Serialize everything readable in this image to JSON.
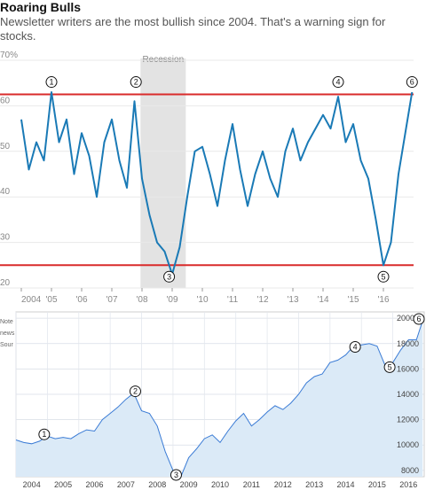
{
  "header": {
    "title": "Roaring Bulls",
    "subtitle": "Newsletter writers are the most bullish since 2004. That's a warning sign for stocks."
  },
  "notes": [
    "Note",
    "news",
    "Sour"
  ],
  "colors": {
    "bulls_line": "#1a7ab6",
    "threshold_line": "#d92b2b",
    "recession_band": "#e3e3e3",
    "dow_line": "#3a7bd5",
    "dow_fill": "#dbeaf7"
  },
  "chart_data": [
    {
      "type": "line",
      "title": "",
      "ylim": [
        20,
        70
      ],
      "y_ticks": [
        "70%",
        "60",
        "50",
        "40",
        "30",
        "20"
      ],
      "x_labels": [
        "2004",
        "'05",
        "'06",
        "'07",
        "'08",
        "'09",
        "'10",
        "'11",
        "'12",
        "'13",
        "'14",
        "'15",
        "'16"
      ],
      "shaded_region": {
        "label": "Recession",
        "from": 2007.95,
        "to": 2009.45
      },
      "reference_lines": [
        62.5,
        25
      ],
      "markers": [
        {
          "label": "1",
          "x": 2005.0,
          "y": 62.8
        },
        {
          "label": "2",
          "x": 2007.8,
          "y": 62.0
        },
        {
          "label": "3",
          "x": 2008.9,
          "y": 23.0
        },
        {
          "label": "4",
          "x": 2014.5,
          "y": 62.5
        },
        {
          "label": "5",
          "x": 2016.0,
          "y": 25.5
        },
        {
          "label": "6",
          "x": 2016.95,
          "y": 63.0
        }
      ],
      "x": [
        2004.0,
        2004.25,
        2004.5,
        2004.75,
        2005.0,
        2005.25,
        2005.5,
        2005.75,
        2006.0,
        2006.25,
        2006.5,
        2006.75,
        2007.0,
        2007.25,
        2007.5,
        2007.75,
        2008.0,
        2008.25,
        2008.5,
        2008.75,
        2009.0,
        2009.25,
        2009.5,
        2009.75,
        2010.0,
        2010.25,
        2010.5,
        2010.75,
        2011.0,
        2011.25,
        2011.5,
        2011.75,
        2012.0,
        2012.25,
        2012.5,
        2012.75,
        2013.0,
        2013.25,
        2013.5,
        2013.75,
        2014.0,
        2014.25,
        2014.5,
        2014.75,
        2015.0,
        2015.25,
        2015.5,
        2015.75,
        2016.0,
        2016.25,
        2016.5,
        2016.75,
        2016.95
      ],
      "series": [
        {
          "values": [
            57,
            46,
            52,
            48,
            63,
            52,
            57,
            45,
            54,
            49,
            40,
            52,
            57,
            48,
            42,
            61,
            44,
            36,
            30,
            28,
            23,
            29,
            40,
            50,
            51,
            45,
            38,
            48,
            56,
            46,
            38,
            45,
            50,
            44,
            40,
            50,
            55,
            48,
            52,
            55,
            58,
            55,
            62,
            52,
            56,
            48,
            44,
            35,
            25,
            30,
            45,
            55,
            63
          ]
        }
      ]
    },
    {
      "type": "area",
      "title": "",
      "ylim": [
        7500,
        20500
      ],
      "y_ticks": [
        "20000",
        "18000",
        "16000",
        "14000",
        "12000",
        "10000",
        "8000"
      ],
      "x_labels": [
        "2004",
        "2005",
        "2006",
        "2007",
        "2008",
        "2009",
        "2010",
        "2011",
        "2012",
        "2013",
        "2014",
        "2015",
        "2016"
      ],
      "markers": [
        {
          "label": "1",
          "x": 2004.9,
          "y": 10700
        },
        {
          "label": "2",
          "x": 2007.8,
          "y": 14100
        },
        {
          "label": "3",
          "x": 2009.1,
          "y": 6700
        },
        {
          "label": "4",
          "x": 2014.8,
          "y": 17600
        },
        {
          "label": "5",
          "x": 2015.9,
          "y": 16000
        },
        {
          "label": "6",
          "x": 2016.95,
          "y": 19800
        }
      ],
      "x": [
        2004.0,
        2004.25,
        2004.5,
        2004.75,
        2005.0,
        2005.25,
        2005.5,
        2005.75,
        2006.0,
        2006.25,
        2006.5,
        2006.75,
        2007.0,
        2007.25,
        2007.5,
        2007.75,
        2008.0,
        2008.25,
        2008.5,
        2008.75,
        2009.0,
        2009.25,
        2009.5,
        2009.75,
        2010.0,
        2010.25,
        2010.5,
        2010.75,
        2011.0,
        2011.25,
        2011.5,
        2011.75,
        2012.0,
        2012.25,
        2012.5,
        2012.75,
        2013.0,
        2013.25,
        2013.5,
        2013.75,
        2014.0,
        2014.25,
        2014.5,
        2014.75,
        2015.0,
        2015.25,
        2015.5,
        2015.75,
        2016.0,
        2016.25,
        2016.5,
        2016.75,
        2016.95
      ],
      "series": [
        {
          "values": [
            10400,
            10200,
            10100,
            10300,
            10700,
            10500,
            10600,
            10500,
            10900,
            11200,
            11100,
            12000,
            12500,
            13000,
            13600,
            14100,
            12700,
            12500,
            11500,
            9500,
            8000,
            7500,
            9000,
            9700,
            10500,
            10800,
            10200,
            11100,
            11900,
            12500,
            11500,
            12000,
            12600,
            13100,
            12800,
            13300,
            14000,
            14900,
            15400,
            15600,
            16500,
            16700,
            17100,
            17800,
            17900,
            18000,
            17800,
            16300,
            16500,
            17500,
            18300,
            18300,
            19800
          ]
        }
      ]
    }
  ]
}
